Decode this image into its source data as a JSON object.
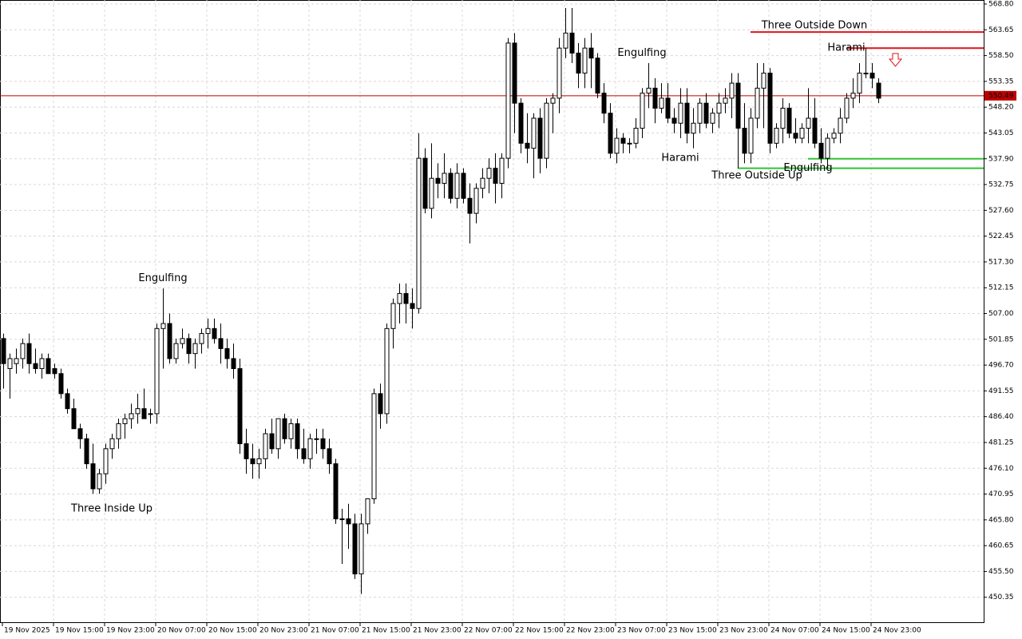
{
  "chart_data": {
    "type": "candlestick",
    "open": [
      502,
      496,
      497,
      498,
      501,
      497,
      496,
      498,
      496,
      495,
      491,
      488,
      484,
      482,
      477,
      472,
      475,
      480,
      482,
      485,
      486,
      487,
      488,
      487,
      487,
      504,
      505,
      498,
      501,
      502,
      499,
      501,
      503,
      504,
      502,
      500,
      498,
      496,
      481,
      478,
      477,
      478,
      483,
      480,
      486,
      482,
      485,
      480,
      478,
      482,
      482,
      480,
      477,
      466,
      466,
      465,
      455,
      465,
      470,
      491,
      487,
      504,
      509,
      511,
      509,
      508,
      538,
      528,
      534,
      533,
      535,
      530,
      535,
      530,
      527,
      532,
      534,
      536,
      533,
      538,
      561,
      549,
      541,
      540,
      546,
      538,
      549,
      550,
      560,
      563,
      559,
      555,
      560,
      558,
      551,
      547,
      539,
      542,
      541,
      541,
      544,
      551,
      552,
      548,
      550,
      546,
      545,
      549,
      543,
      545,
      549,
      545,
      547,
      549,
      550,
      553,
      544,
      539,
      546,
      552,
      555,
      541,
      544,
      548,
      543,
      542,
      544,
      546,
      541,
      538,
      542,
      543,
      546,
      550,
      551,
      555,
      555,
      553
    ],
    "high": [
      503,
      499,
      500,
      502,
      503,
      500,
      499,
      499,
      497,
      496,
      492,
      490,
      485,
      483,
      481,
      476,
      481,
      483,
      486,
      487,
      489,
      491,
      492,
      488,
      505,
      512,
      507,
      502,
      504,
      503,
      502,
      504,
      506,
      506,
      505,
      502,
      501,
      498,
      484,
      481,
      480,
      484,
      486,
      486,
      487,
      486,
      486,
      484,
      483,
      484,
      484,
      482,
      478,
      468,
      469,
      467,
      467,
      470,
      492,
      493,
      505,
      510,
      513,
      513,
      512,
      543,
      540,
      541,
      537,
      539,
      536,
      537,
      536,
      533,
      533,
      536,
      538,
      539,
      539,
      562,
      563,
      550,
      547,
      547,
      548,
      550,
      551,
      562,
      568,
      568,
      561,
      562,
      563,
      559,
      553,
      549,
      544,
      543,
      542,
      546,
      552,
      557,
      554,
      553,
      553,
      548,
      552,
      552,
      548,
      550,
      551,
      548,
      551,
      552,
      555,
      555,
      549,
      548,
      557,
      557,
      556,
      545,
      550,
      549,
      546,
      545,
      552,
      550,
      544,
      543,
      544,
      548,
      551,
      554,
      557,
      560,
      557,
      554
    ],
    "low": [
      492,
      490,
      495,
      496,
      495,
      495,
      494,
      495,
      494,
      490,
      487,
      484,
      480,
      476,
      471,
      471,
      473,
      478,
      480,
      482,
      484,
      485,
      486,
      485,
      485,
      496,
      497,
      497,
      500,
      497,
      496,
      499,
      500,
      501,
      497,
      496,
      494,
      479,
      475,
      474,
      474,
      476,
      479,
      478,
      481,
      480,
      478,
      477,
      476,
      479,
      478,
      475,
      465,
      457,
      460,
      454,
      451,
      463,
      469,
      484,
      485,
      500,
      505,
      505,
      504,
      507,
      527,
      526,
      530,
      530,
      529,
      528,
      529,
      521,
      525,
      530,
      531,
      529,
      530,
      536,
      543,
      539,
      537,
      534,
      535,
      536,
      543,
      547,
      558,
      557,
      552,
      552,
      552,
      550,
      545,
      538,
      537,
      539,
      539,
      540,
      542,
      548,
      545,
      547,
      545,
      543,
      542,
      541,
      540,
      543,
      544,
      543,
      544,
      547,
      546,
      536,
      537,
      537,
      544,
      544,
      539,
      540,
      541,
      542,
      541,
      541,
      541,
      540,
      537,
      536,
      541,
      541,
      545,
      548,
      549,
      554,
      552,
      549
    ],
    "close": [
      497,
      498,
      498,
      501,
      497,
      496,
      498,
      495,
      495,
      491,
      488,
      484,
      482,
      477,
      472,
      475,
      480,
      482,
      485,
      486,
      487,
      488,
      486,
      487,
      504,
      505,
      498,
      501,
      502,
      499,
      501,
      503,
      504,
      502,
      500,
      498,
      496,
      481,
      478,
      477,
      478,
      483,
      480,
      486,
      482,
      485,
      480,
      478,
      482,
      482,
      480,
      477,
      466,
      466,
      465,
      455,
      465,
      470,
      491,
      487,
      504,
      509,
      511,
      509,
      508,
      538,
      528,
      534,
      533,
      535,
      530,
      535,
      530,
      527,
      532,
      534,
      536,
      533,
      538,
      561,
      549,
      541,
      540,
      546,
      538,
      549,
      550,
      560,
      563,
      559,
      555,
      560,
      558,
      551,
      547,
      539,
      542,
      541,
      541,
      544,
      551,
      552,
      548,
      550,
      546,
      545,
      549,
      543,
      545,
      549,
      545,
      547,
      549,
      550,
      553,
      544,
      539,
      546,
      552,
      555,
      541,
      544,
      548,
      543,
      542,
      544,
      546,
      541,
      538,
      542,
      543,
      546,
      550,
      551,
      555,
      555,
      554,
      550
    ],
    "up_color": "#ffffff",
    "down_color": "#000000",
    "ylim": [
      445.2,
      569.6
    ],
    "yticks": [
      {
        "value": 568.8,
        "label": "568.80"
      },
      563.65,
      {
        "value": 558.5,
        "label": "558.50"
      },
      553.35,
      {
        "value": 548.2,
        "label": "548.20"
      },
      543.05,
      {
        "value": 537.9,
        "label": "537.90"
      },
      532.75,
      {
        "value": 527.6,
        "label": "527.60"
      },
      522.45,
      {
        "value": 517.3,
        "label": "517.30"
      },
      512.15,
      {
        "value": 507,
        "label": "507.00"
      },
      501.85,
      {
        "value": 496.7,
        "label": "496.70"
      },
      491.55,
      {
        "value": 486.4,
        "label": "486.40"
      },
      481.25,
      {
        "value": 476.1,
        "label": "476.10"
      },
      470.95,
      {
        "value": 465.8,
        "label": "465.80"
      },
      460.65,
      {
        "value": 455.5,
        "label": "455.50"
      },
      450.35
    ],
    "xticks": [
      {
        "value": 0,
        "label": "19 Nov 2025"
      },
      {
        "value": 8,
        "label": "19 Nov 15:00"
      },
      {
        "value": 16,
        "label": "19 Nov 23:00"
      },
      {
        "value": 24,
        "label": "20 Nov 07:00"
      },
      {
        "value": 32,
        "label": "20 Nov 15:00"
      },
      {
        "value": 40,
        "label": "20 Nov 23:00"
      },
      {
        "value": 48,
        "label": "21 Nov 07:00"
      },
      {
        "value": 56,
        "label": "21 Nov 15:00"
      },
      {
        "value": 64,
        "label": "21 Nov 23:00"
      },
      {
        "value": 72,
        "label": "22 Nov 07:00"
      },
      {
        "value": 80,
        "label": "22 Nov 15:00"
      },
      {
        "value": 88,
        "label": "22 Nov 23:00"
      },
      {
        "value": 96,
        "label": "23 Nov 07:00"
      },
      {
        "value": 104,
        "label": "23 Nov 15:00"
      },
      {
        "value": 112,
        "label": "23 Nov 23:00"
      },
      {
        "value": 120,
        "label": "24 Nov 07:00"
      },
      {
        "value": 128,
        "label": "24 Nov 15:00"
      },
      {
        "value": 136,
        "label": "24 Nov 23:00"
      }
    ],
    "grid": true,
    "last_price": 550.49,
    "last_price_color": "#c00000",
    "annotations": [
      {
        "text": "Engulfing",
        "color": "#e0131a",
        "x": 25,
        "y": 514
      },
      {
        "text": "Three Inside Up",
        "color": "#33c233",
        "x": 17,
        "y": 468
      },
      {
        "text": "Engulfing",
        "color": "#e0131a",
        "x": 100,
        "y": 559
      },
      {
        "text": "Harami",
        "color": "#33c233",
        "x": 106,
        "y": 538
      },
      {
        "text": "Three Outside Down",
        "color": "#e0131a",
        "x": 127,
        "y": 564.5
      },
      {
        "text": "Three Outside Up",
        "color": "#33c233",
        "x": 118,
        "y": 534.5
      },
      {
        "text": "Harami",
        "color": "#e0131a",
        "x": 132,
        "y": 560
      },
      {
        "text": "Engulfing",
        "color": "#33c233",
        "x": 126,
        "y": 536
      }
    ],
    "levels": [
      {
        "value": 563.2,
        "color": "#e0131a",
        "from": 117
      },
      {
        "value": 560,
        "color": "#e0131a",
        "from": 132
      },
      {
        "value": 537.9,
        "color": "#33c233",
        "from": 126
      },
      {
        "value": 536,
        "color": "#33c233",
        "from": 115
      }
    ]
  }
}
